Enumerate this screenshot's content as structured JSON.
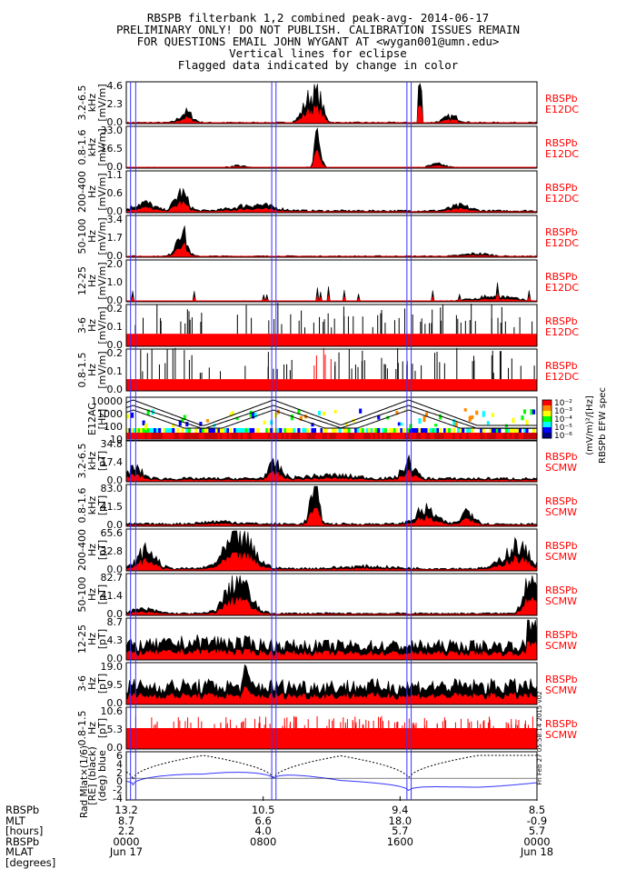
{
  "header": {
    "lines": [
      "RBSPB filterbank 1,2 combined peak-avg- 2014-06-17",
      "PRELIMINARY ONLY! DO NOT PUBLISH. CALIBRATION ISSUES REMAIN",
      "FOR QUESTIONS EMAIL JOHN WYGANT AT <wygan001@umn.edu>",
      "Vertical lines for eclipse",
      "Flagged data indicated by change in color"
    ]
  },
  "colorbar": {
    "title": "RBSPb EFW spec",
    "unit": "(mV/m)²/[Hz]",
    "ticks": [
      "10⁻²",
      "10⁻³",
      "10⁻⁴",
      "10⁻⁵",
      "10⁻⁶"
    ],
    "colors": [
      "#ff0000",
      "#ff8800",
      "#ffff00",
      "#00ff00",
      "#00ffff",
      "#0000ff",
      "#000080"
    ]
  },
  "eclipse_lines_hours": [
    0.25,
    0.55,
    8.5,
    8.75,
    16.4,
    16.65
  ],
  "time_axis": {
    "hours": [
      0,
      8,
      16,
      24
    ],
    "labels": [
      {
        "rad": "13.2",
        "mlt": "8.7",
        "l": "2.2",
        "mlat": "0000",
        "date": "Jun 17"
      },
      {
        "rad": "10.5",
        "mlt": "6.6",
        "l": "4.0",
        "mlat": "0800",
        "date": ""
      },
      {
        "rad": "9.4",
        "mlt": "18.0",
        "l": "5.7",
        "mlat": "1600",
        "date": ""
      },
      {
        "rad": "8.5",
        "mlt": "-0.9",
        "l": "5.7",
        "mlat": "0000",
        "date": "Jun 18"
      }
    ],
    "row_labels": [
      "RBSPb",
      "MLT",
      "[hours]",
      "RBSPb",
      "MLAT",
      "[degrees]"
    ],
    "left_axis_title": "Rad  Mlat×(1/6)"
  },
  "chart_data": {
    "type": "line",
    "x_range_hours": [
      0,
      24
    ],
    "panels": [
      {
        "ylabel": [
          "3.2-6.5",
          "kHz",
          "[mV/m]"
        ],
        "ticks": [
          "4.6",
          "2.3",
          "0.0"
        ],
        "ymax": 4.6,
        "side_label": [
          "RBSPb",
          "E12DC"
        ],
        "profile": "p1"
      },
      {
        "ylabel": [
          "0.8-1.6",
          "kHz",
          "[mV/m]"
        ],
        "ticks": [
          "33.0",
          "16.5",
          "0.0"
        ],
        "ymax": 33.0,
        "side_label": [
          "RBSPb",
          "E12DC"
        ],
        "profile": "p2"
      },
      {
        "ylabel": [
          "200-400",
          "Hz",
          "[mV/m]"
        ],
        "ticks": [
          "1.1",
          "0.6",
          "0.0"
        ],
        "ymax": 1.1,
        "side_label": [
          "RBSPb",
          "E12DC"
        ],
        "profile": "p3"
      },
      {
        "ylabel": [
          "50-100",
          "Hz",
          "[mV/m]"
        ],
        "ticks": [
          "3.4",
          "1.7",
          "0.0"
        ],
        "ymax": 3.4,
        "side_label": [
          "RBSPb",
          "E12DC"
        ],
        "profile": "p4"
      },
      {
        "ylabel": [
          "12-25",
          "Hz",
          "[mV/m]"
        ],
        "ticks": [
          "2.0",
          "1.0",
          "0.0"
        ],
        "ymax": 2.0,
        "side_label": [
          "RBSPb",
          "E12DC"
        ],
        "profile": "p5"
      },
      {
        "ylabel": [
          "3-6",
          "Hz",
          "[mV/m]"
        ],
        "ticks": [
          "0.2",
          "0.1",
          "0.0"
        ],
        "ymax": 0.2,
        "side_label": [
          "RBSPb",
          "E12DC"
        ],
        "profile": "p6"
      },
      {
        "ylabel": [
          "0.8-1.5",
          "Hz",
          "[mV/m]"
        ],
        "ticks": [
          "0.2",
          "0.1",
          "0.0"
        ],
        "ymax": 0.2,
        "side_label": [
          "RBSPb",
          "E12DC"
        ],
        "profile": "p7"
      },
      {
        "ylabel": [
          "E12AC",
          "[Hz]"
        ],
        "ticks": [
          "10000",
          "1000",
          "100",
          "10"
        ],
        "ymax": 10000,
        "side_label": [],
        "profile": "spec"
      },
      {
        "ylabel": [
          "3.2-6.5",
          "kHz",
          "[pT]"
        ],
        "ticks": [
          "34.8",
          "17.4",
          "0.0"
        ],
        "ymax": 34.8,
        "side_label": [
          "RBSPb",
          "SCMW"
        ],
        "profile": "p9"
      },
      {
        "ylabel": [
          "0.8-1.6",
          "kHz",
          "[pT]"
        ],
        "ticks": [
          "83.0",
          "41.5",
          "0.0"
        ],
        "ymax": 83.0,
        "side_label": [
          "RBSPb",
          "SCMW"
        ],
        "profile": "p10"
      },
      {
        "ylabel": [
          "200-400",
          "Hz",
          "[pT]"
        ],
        "ticks": [
          "65.6",
          "32.8",
          "0.0"
        ],
        "ymax": 65.6,
        "side_label": [
          "RBSPb",
          "SCMW"
        ],
        "profile": "p11"
      },
      {
        "ylabel": [
          "50-100",
          "Hz",
          "[pT]"
        ],
        "ticks": [
          "82.7",
          "41.4",
          "0.0"
        ],
        "ymax": 82.7,
        "side_label": [
          "RBSPb",
          "SCMW"
        ],
        "profile": "p12"
      },
      {
        "ylabel": [
          "12-25",
          "Hz",
          "[pT]"
        ],
        "ticks": [
          "8.7",
          "4.3",
          "0.0"
        ],
        "ymax": 8.7,
        "side_label": [
          "RBSPb",
          "SCMW"
        ],
        "profile": "p13"
      },
      {
        "ylabel": [
          "3-6",
          "Hz",
          "[pT]"
        ],
        "ticks": [
          "19.0",
          "9.5",
          "0.0"
        ],
        "ymax": 19.0,
        "side_label": [
          "RBSPb",
          "SCMW"
        ],
        "profile": "p14"
      },
      {
        "ylabel": [
          "0.8-1.5",
          "Hz",
          "[pT]"
        ],
        "ticks": [
          "10.6",
          "5.3",
          "0.0"
        ],
        "ymax": 10.6,
        "side_label": [
          "RBSPb",
          "SCMW"
        ],
        "profile": "p15"
      },
      {
        "ylabel": [
          "[RE] (black)",
          "(deg) blue"
        ],
        "ticks": [
          "6",
          "4",
          "2",
          "0",
          "-2",
          "-4"
        ],
        "ymax": 6,
        "side_label": [],
        "profile": "orbit"
      }
    ],
    "side_note": "Fri Feb 27 05:58:14 2015 v02"
  }
}
